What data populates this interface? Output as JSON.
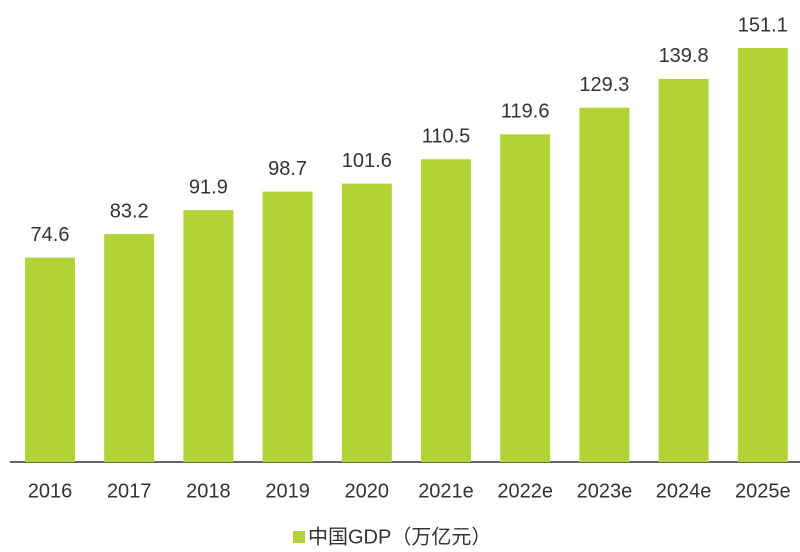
{
  "chart_data": {
    "type": "bar",
    "categories": [
      "2016",
      "2017",
      "2018",
      "2019",
      "2020",
      "2021e",
      "2022e",
      "2023e",
      "2024e",
      "2025e"
    ],
    "series": [
      {
        "name": "中国GDP（万亿元）",
        "color": "#b3d235",
        "values": [
          74.6,
          83.2,
          91.9,
          98.7,
          101.6,
          110.5,
          119.6,
          129.3,
          139.8,
          151.1
        ]
      }
    ]
  }
}
